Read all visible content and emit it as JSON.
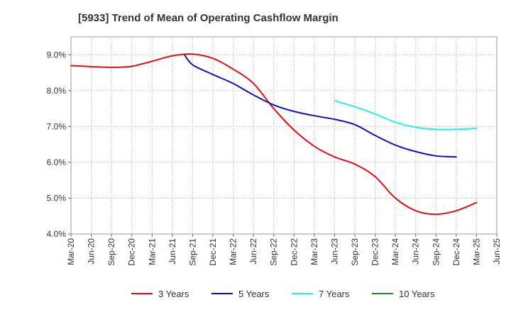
{
  "chart_data": {
    "type": "line",
    "title": "[5933]  Trend of Mean of Operating Cashflow Margin",
    "xlabel": "",
    "ylabel": "",
    "ylim": [
      4.0,
      9.5
    ],
    "y_ticks": [
      4.0,
      5.0,
      6.0,
      7.0,
      8.0,
      9.0
    ],
    "y_tick_labels": [
      "4.0%",
      "5.0%",
      "6.0%",
      "7.0%",
      "8.0%",
      "9.0%"
    ],
    "x_tick_labels": [
      "Mar-20",
      "Jun-20",
      "Sep-20",
      "Dec-20",
      "Mar-21",
      "Jun-21",
      "Sep-21",
      "Dec-21",
      "Mar-22",
      "Jun-22",
      "Sep-22",
      "Dec-22",
      "Mar-23",
      "Jun-23",
      "Sep-23",
      "Dec-23",
      "Mar-24",
      "Jun-24",
      "Sep-24",
      "Dec-24",
      "Mar-25",
      "Jun-25"
    ],
    "grid": true,
    "legend_position": "bottom",
    "series": [
      {
        "name": "3 Years",
        "color": "#dd1111",
        "start_index": 0,
        "values": [
          8.7,
          8.67,
          8.65,
          8.68,
          8.82,
          8.97,
          9.02,
          8.9,
          8.6,
          8.2,
          7.5,
          6.9,
          6.45,
          6.15,
          5.95,
          5.6,
          5.0,
          4.65,
          4.55,
          4.65,
          4.88
        ]
      },
      {
        "name": "5 Years",
        "color": "#1010bb",
        "start_index": 5.6,
        "values_start_x": 5.6,
        "values": [
          9.0,
          8.72,
          8.45,
          8.2,
          7.88,
          7.6,
          7.42,
          7.3,
          7.2,
          7.05,
          6.75,
          6.48,
          6.3,
          6.18,
          6.15
        ]
      },
      {
        "name": "7 Years",
        "color": "#22eeee",
        "start_index": 13,
        "values": [
          7.72,
          7.55,
          7.35,
          7.12,
          6.98,
          6.92,
          6.92,
          6.95
        ]
      },
      {
        "name": "10 Years",
        "color": "#228b22",
        "start_index": 0,
        "values": []
      }
    ]
  }
}
